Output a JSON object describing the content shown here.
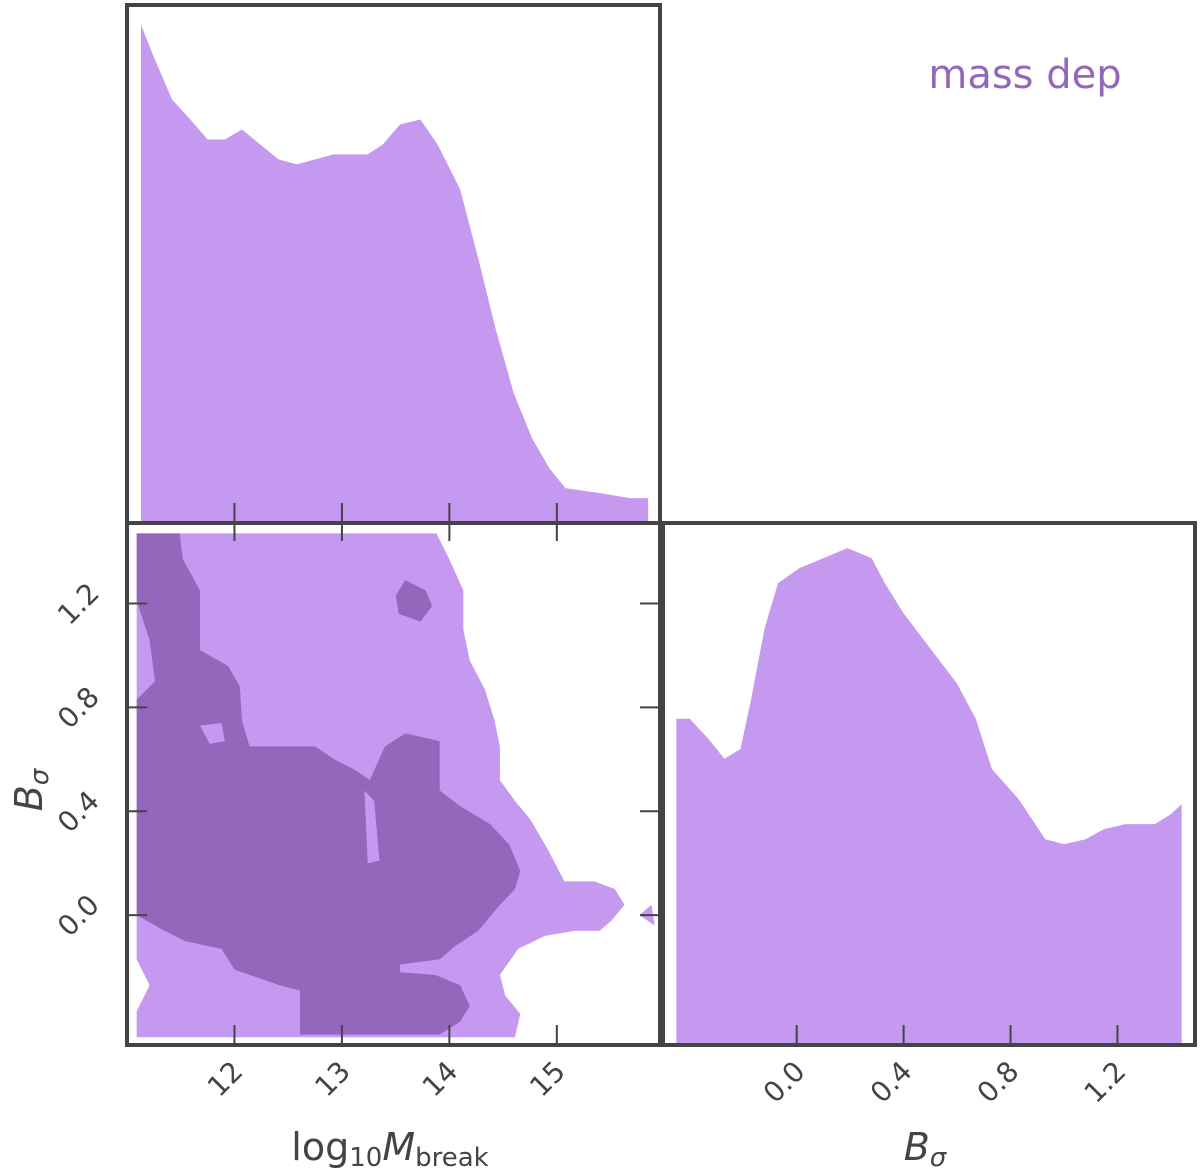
{
  "chart_data": [
    {
      "type": "area",
      "label": "mass dep",
      "label_color": "#9467bd",
      "color": "#c599ef",
      "x": [
        11.13,
        11.26,
        11.42,
        11.59,
        11.75,
        11.91,
        12.07,
        12.24,
        12.41,
        12.58,
        12.75,
        12.92,
        13.07,
        13.24,
        13.38,
        13.54,
        13.73,
        13.89,
        14.1,
        14.27,
        14.43,
        14.6,
        14.77,
        14.93,
        15.08,
        15.4,
        15.68,
        15.85
      ],
      "values": [
        1.0,
        0.93,
        0.85,
        0.81,
        0.77,
        0.77,
        0.79,
        0.76,
        0.73,
        0.72,
        0.73,
        0.74,
        0.74,
        0.74,
        0.76,
        0.8,
        0.81,
        0.76,
        0.67,
        0.53,
        0.39,
        0.26,
        0.17,
        0.11,
        0.07,
        0.06,
        0.05,
        0.05
      ],
      "xlim": [
        11.0,
        15.96
      ],
      "ylim": [
        0,
        1.04
      ],
      "xticks": [
        12,
        13,
        14,
        15
      ]
    },
    {
      "type": "contour",
      "xlabel": [
        "log",
        "10",
        "M",
        "break"
      ],
      "ylabel": [
        "B",
        "σ"
      ],
      "xlim": [
        11.0,
        15.96
      ],
      "ylim": [
        -0.5,
        1.51
      ],
      "xticks": [
        12,
        13,
        14,
        15
      ],
      "yticks": [
        {
          "value": 0,
          "label": "0.0"
        },
        0.4,
        0.8,
        1.2
      ],
      "contours": [
        {
          "color": "#c599ef",
          "x": [
            11.09,
            13.88,
            14.0,
            14.13,
            14.13,
            14.19,
            14.33,
            14.42,
            14.47,
            14.47,
            14.61,
            14.75,
            14.92,
            15.07,
            15.35,
            15.54,
            15.63,
            15.51,
            15.4,
            15.17,
            14.89,
            14.64,
            14.47,
            14.52,
            14.66,
            14.61,
            11.09,
            11.09,
            11.21,
            11.09
          ],
          "y": [
            1.47,
            1.47,
            1.37,
            1.25,
            1.1,
            0.98,
            0.87,
            0.75,
            0.65,
            0.52,
            0.44,
            0.37,
            0.25,
            0.13,
            0.13,
            0.1,
            0.04,
            -0.02,
            -0.06,
            -0.06,
            -0.08,
            -0.13,
            -0.23,
            -0.31,
            -0.38,
            -0.47,
            -0.47,
            -0.37,
            -0.27,
            -0.17
          ]
        },
        {
          "color": "#c599ef",
          "x": [
            15.77,
            15.88,
            15.91
          ],
          "y": [
            0.0,
            0.04,
            -0.04
          ]
        },
        {
          "color": "#9467bd",
          "x": [
            11.09,
            11.49,
            11.52,
            11.68,
            11.68,
            11.94,
            12.05,
            12.07,
            12.14,
            12.75,
            12.93,
            13.12,
            13.26,
            13.4,
            13.59,
            13.91,
            13.91,
            14.1,
            14.38,
            14.56,
            14.66,
            14.61,
            14.47,
            14.27,
            14.05,
            13.91,
            13.54,
            13.54,
            13.87,
            14.1,
            14.19,
            14.1,
            13.91,
            12.61,
            12.61,
            12.42,
            12.0,
            11.88,
            11.54,
            11.35,
            11.09,
            11.09,
            11.26,
            11.21,
            11.09
          ],
          "y": [
            1.47,
            1.47,
            1.37,
            1.25,
            1.02,
            0.96,
            0.88,
            0.75,
            0.65,
            0.65,
            0.6,
            0.56,
            0.52,
            0.65,
            0.7,
            0.67,
            0.48,
            0.42,
            0.35,
            0.27,
            0.17,
            0.1,
            0.04,
            -0.06,
            -0.12,
            -0.17,
            -0.19,
            -0.22,
            -0.23,
            -0.27,
            -0.35,
            -0.41,
            -0.46,
            -0.46,
            -0.29,
            -0.27,
            -0.21,
            -0.13,
            -0.1,
            -0.06,
            0.0,
            0.83,
            0.9,
            1.06,
            1.21
          ]
        },
        {
          "color": "#9467bd",
          "x": [
            13.59,
            13.78,
            13.84,
            13.73,
            13.53,
            13.5
          ],
          "y": [
            1.29,
            1.25,
            1.19,
            1.13,
            1.16,
            1.23
          ]
        },
        {
          "color": "#c599ef",
          "x": [
            11.68,
            11.88,
            11.91,
            11.77
          ],
          "y": [
            0.73,
            0.74,
            0.67,
            0.66
          ]
        },
        {
          "color": "#c599ef",
          "x": [
            13.21,
            13.3,
            13.35,
            13.24
          ],
          "y": [
            0.48,
            0.44,
            0.21,
            0.2
          ]
        }
      ]
    },
    {
      "type": "area",
      "xlabel": [
        "B",
        "σ"
      ],
      "color": "#c599ef",
      "x": [
        -0.45,
        -0.4,
        -0.33,
        -0.27,
        -0.21,
        -0.17,
        -0.12,
        -0.07,
        0.01,
        0.1,
        0.19,
        0.28,
        0.33,
        0.4,
        0.5,
        0.6,
        0.67,
        0.73,
        0.83,
        0.93,
        1.0,
        1.08,
        1.15,
        1.23,
        1.34,
        1.4,
        1.44
      ],
      "values": [
        0.65,
        0.65,
        0.61,
        0.57,
        0.59,
        0.69,
        0.83,
        0.92,
        0.95,
        0.97,
        0.99,
        0.97,
        0.92,
        0.86,
        0.79,
        0.72,
        0.65,
        0.55,
        0.49,
        0.41,
        0.4,
        0.41,
        0.43,
        0.44,
        0.44,
        0.46,
        0.48
      ],
      "xlim": [
        -0.5,
        1.49
      ],
      "ylim": [
        0,
        1.04
      ],
      "xticks": [
        {
          "value": 0,
          "label": "0.0"
        },
        0.4,
        0.8,
        1.2
      ]
    }
  ]
}
